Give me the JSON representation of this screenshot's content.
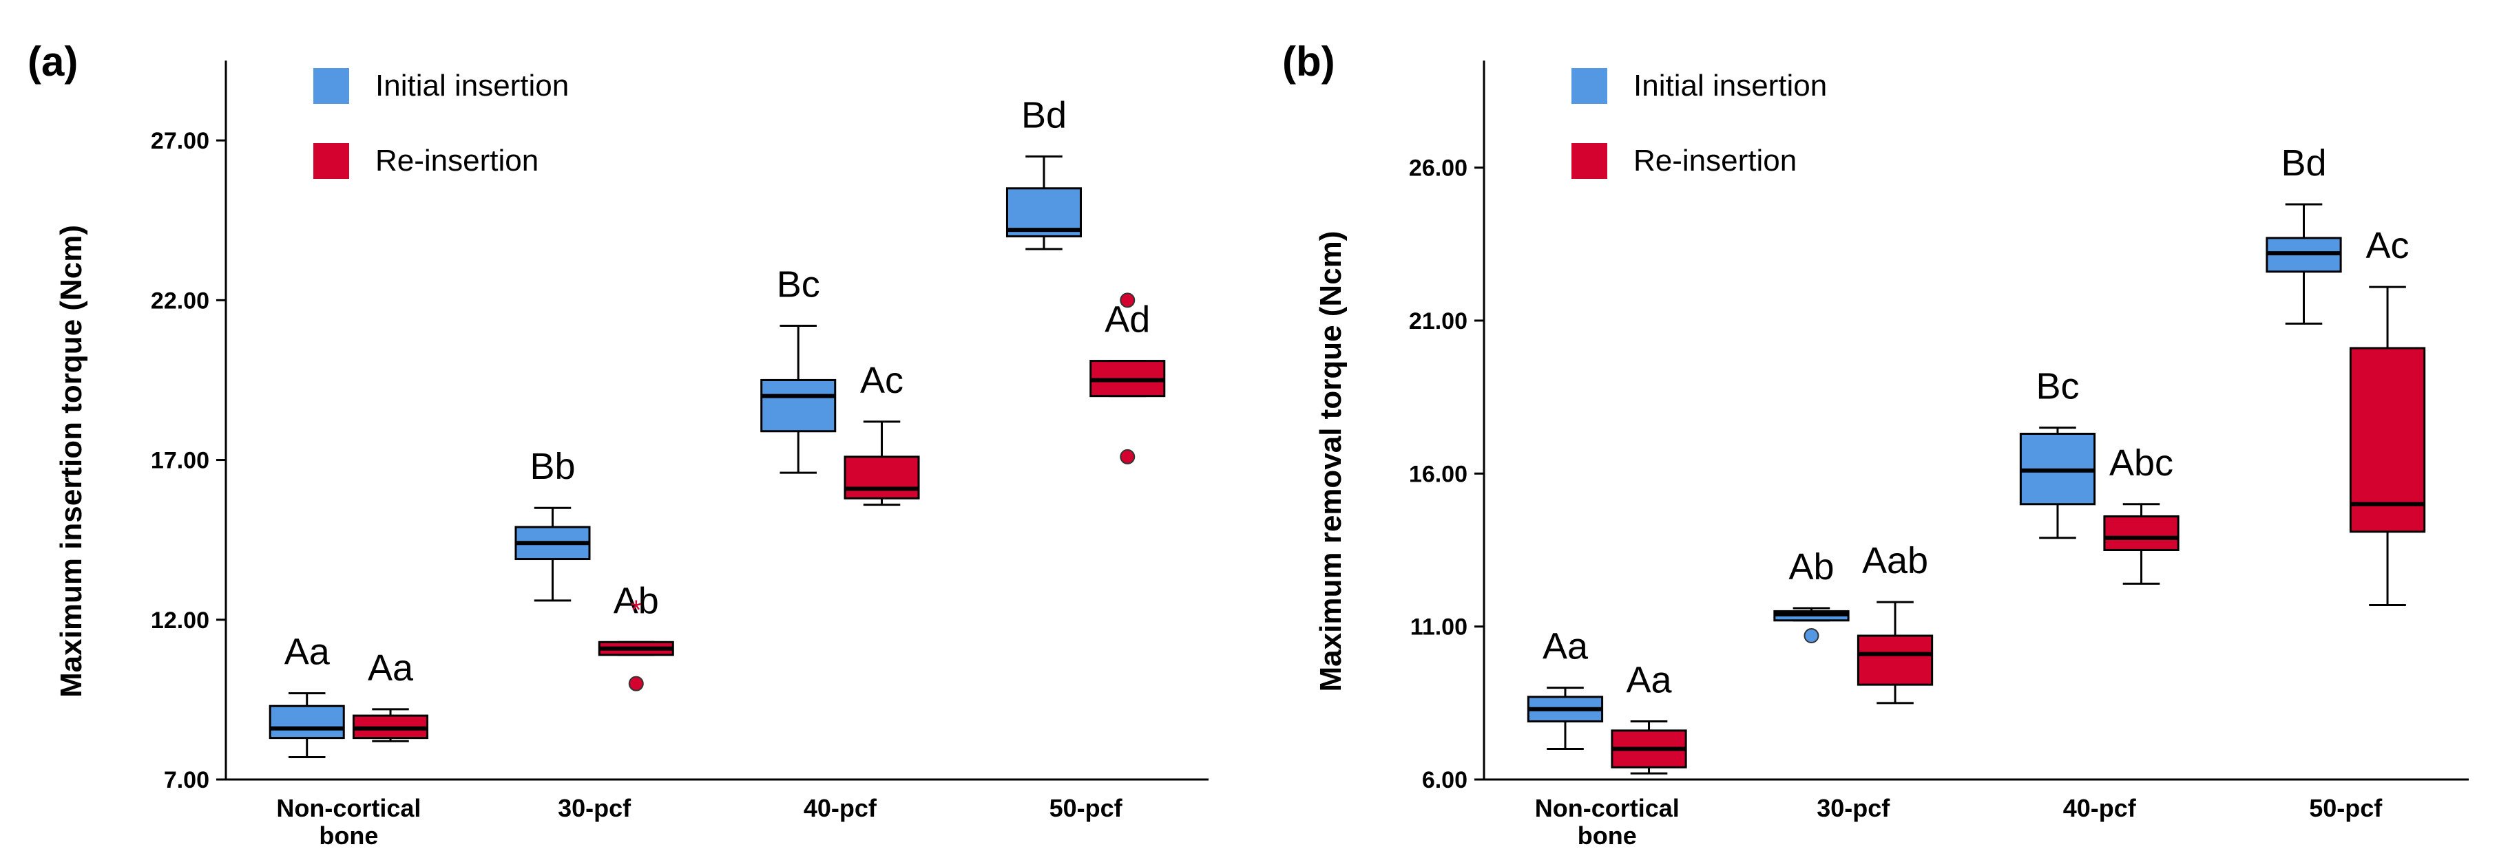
{
  "colors": {
    "initial": "#5497e3",
    "reinsertion": "#d3022e",
    "axis": "#000000"
  },
  "legend": [
    {
      "key": "initial",
      "label": "Initial insertion"
    },
    {
      "key": "reinsertion",
      "label": "Re-insertion"
    }
  ],
  "chart_data": [
    {
      "type": "box",
      "panel_label": "(a)",
      "ylabel": "Maximum insertion torque (Ncm)",
      "ylim": [
        7,
        29.5
      ],
      "yticks": [
        "7.00",
        "12.00",
        "17.00",
        "22.00",
        "27.00"
      ],
      "categories": [
        "Non-cortical\nbone",
        "30-pcf",
        "40-pcf",
        "50-pcf"
      ],
      "series": [
        {
          "name": "Initial insertion",
          "color_key": "initial",
          "boxes": [
            {
              "min": 7.7,
              "q1": 8.3,
              "median": 8.6,
              "q3": 9.3,
              "max": 9.7,
              "letters": "Aa"
            },
            {
              "min": 12.6,
              "q1": 13.9,
              "median": 14.4,
              "q3": 14.9,
              "max": 15.5,
              "letters": "Bb"
            },
            {
              "min": 16.6,
              "q1": 17.9,
              "median": 19.0,
              "q3": 19.5,
              "max": 21.2,
              "letters": "Bc"
            },
            {
              "min": 23.6,
              "q1": 24.0,
              "median": 24.2,
              "q3": 25.5,
              "max": 26.5,
              "letters": "Bd"
            }
          ],
          "outliers": []
        },
        {
          "name": "Re-insertion",
          "color_key": "reinsertion",
          "boxes": [
            {
              "min": 8.2,
              "q1": 8.3,
              "median": 8.6,
              "q3": 9.0,
              "max": 9.2,
              "letters": "Aa"
            },
            {
              "min": 10.9,
              "q1": 10.9,
              "median": 11.1,
              "q3": 11.3,
              "max": 11.3,
              "letters": "Ab"
            },
            {
              "min": 15.6,
              "q1": 15.8,
              "median": 16.1,
              "q3": 17.1,
              "max": 18.2,
              "letters": "Ac"
            },
            {
              "min": 19.0,
              "q1": 19.0,
              "median": 19.5,
              "q3": 20.1,
              "max": 20.1,
              "letters": "Ad"
            }
          ],
          "outliers": [
            {
              "category": 1,
              "value": 12.4,
              "marker": "star"
            },
            {
              "category": 1,
              "value": 10.0,
              "marker": "circle"
            },
            {
              "category": 3,
              "value": 22.0,
              "marker": "circle"
            },
            {
              "category": 3,
              "value": 17.1,
              "marker": "circle"
            }
          ]
        }
      ]
    },
    {
      "type": "box",
      "panel_label": "(b)",
      "ylabel": "Maximum removal torque (Ncm)",
      "ylim": [
        6,
        29.5
      ],
      "yticks": [
        "6.00",
        "11.00",
        "16.00",
        "21.00",
        "26.00"
      ],
      "categories": [
        "Non-cortical\nbone",
        "30-pcf",
        "40-pcf",
        "50-pcf"
      ],
      "series": [
        {
          "name": "Initial insertion",
          "color_key": "initial",
          "boxes": [
            {
              "min": 7.0,
              "q1": 7.9,
              "median": 8.3,
              "q3": 8.7,
              "max": 9.0,
              "letters": "Aa"
            },
            {
              "min": 11.2,
              "q1": 11.2,
              "median": 11.4,
              "q3": 11.5,
              "max": 11.6,
              "letters": "Ab"
            },
            {
              "min": 13.9,
              "q1": 15.0,
              "median": 16.1,
              "q3": 17.3,
              "max": 17.5,
              "letters": "Bc"
            },
            {
              "min": 20.9,
              "q1": 22.6,
              "median": 23.2,
              "q3": 23.7,
              "max": 24.8,
              "letters": "Bd"
            }
          ],
          "outliers": [
            {
              "category": 1,
              "value": 10.7,
              "marker": "circle"
            }
          ]
        },
        {
          "name": "Re-insertion",
          "color_key": "reinsertion",
          "boxes": [
            {
              "min": 6.2,
              "q1": 6.4,
              "median": 7.0,
              "q3": 7.6,
              "max": 7.9,
              "letters": "Aa"
            },
            {
              "min": 8.5,
              "q1": 9.1,
              "median": 10.1,
              "q3": 10.7,
              "max": 11.8,
              "letters": "Aab"
            },
            {
              "min": 12.4,
              "q1": 13.5,
              "median": 13.9,
              "q3": 14.6,
              "max": 15.0,
              "letters": "Abc"
            },
            {
              "min": 11.7,
              "q1": 14.1,
              "median": 15.0,
              "q3": 20.1,
              "max": 22.1,
              "letters": "Ac"
            }
          ],
          "outliers": []
        }
      ]
    }
  ]
}
